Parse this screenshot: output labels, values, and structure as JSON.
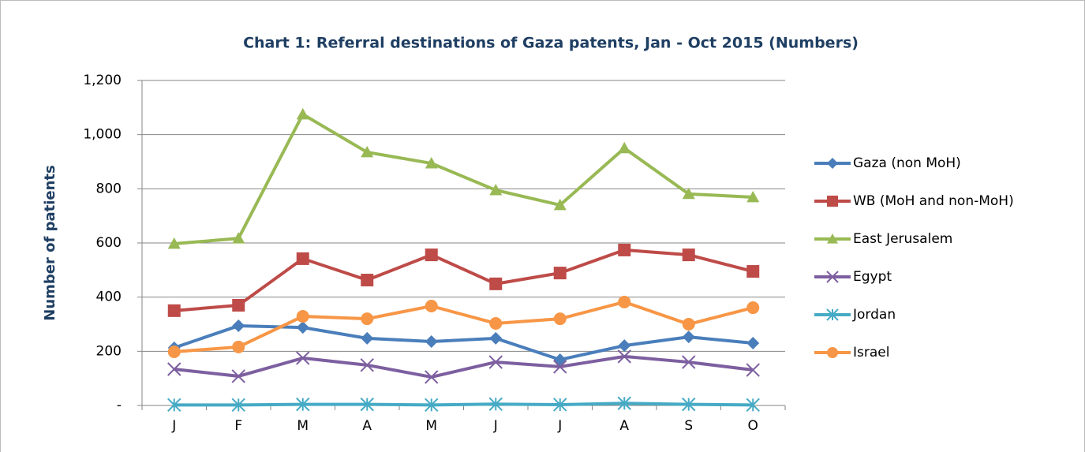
{
  "chart_data": {
    "type": "line",
    "title": "Chart 1: Referral destinations of Gaza patents, Jan - Oct 2015 (Numbers)",
    "y_label": "Number of patients",
    "categories": [
      "J",
      "F",
      "M",
      "A",
      "M",
      "J",
      "J",
      "A",
      "S",
      "O"
    ],
    "ylim": [
      0,
      1200
    ],
    "yticks": [
      {
        "value": 0,
        "label": "-"
      },
      200,
      400,
      600,
      800,
      {
        "value": 1000,
        "label": "1,000"
      },
      {
        "value": 1200,
        "label": "1,200"
      }
    ],
    "grid": true,
    "legend": "right",
    "series": [
      {
        "name": "Gaza (non MoH)",
        "color": "#4a7ebb",
        "marker": "diamond",
        "values": [
          213,
          294,
          288,
          248,
          236,
          248,
          169,
          221,
          253,
          230
        ]
      },
      {
        "name": "WB (MoH and non-MoH)",
        "color": "#be4b48",
        "marker": "square",
        "values": [
          350,
          370,
          542,
          463,
          556,
          449,
          489,
          574,
          556,
          495
        ]
      },
      {
        "name": "East Jerusalem",
        "color": "#98b954",
        "marker": "triangle",
        "values": [
          597,
          617,
          1075,
          935,
          894,
          795,
          740,
          950,
          781,
          769
        ]
      },
      {
        "name": "Egypt",
        "color": "#7d5fa0",
        "marker": "x",
        "values": [
          134,
          108,
          175,
          149,
          105,
          160,
          143,
          181,
          160,
          131
        ]
      },
      {
        "name": "Jordan",
        "color": "#46aac5",
        "marker": "star",
        "values": [
          2,
          2,
          4,
          4,
          2,
          5,
          3,
          8,
          4,
          2
        ]
      },
      {
        "name": "Israel",
        "color": "#f79646",
        "marker": "circle",
        "values": [
          198,
          216,
          329,
          320,
          367,
          303,
          320,
          382,
          300,
          361
        ]
      }
    ]
  }
}
